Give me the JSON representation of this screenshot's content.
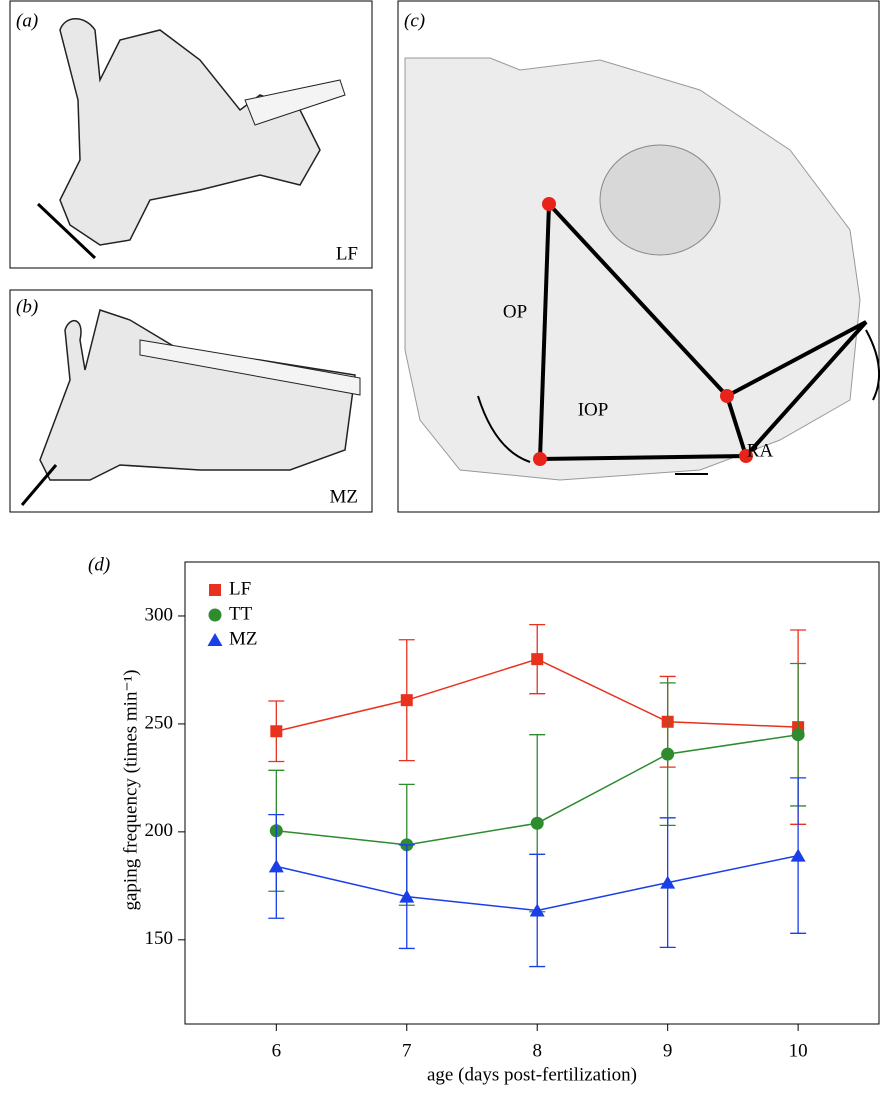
{
  "panels": [
    {
      "label": "(a)",
      "tag": "LF"
    },
    {
      "label": "(b)",
      "tag": "MZ"
    },
    {
      "label": "(c)",
      "annotations": [
        "OP",
        "IOP",
        "RA"
      ]
    }
  ],
  "chart_data": {
    "type": "line",
    "panel_label": "(d)",
    "x_label": "age (days post-fertilization)",
    "y_label": "gaping frequency (times min⁻¹)",
    "x": [
      6,
      7,
      8,
      9,
      10
    ],
    "xlim": [
      5.3,
      10.62
    ],
    "xticks": [
      6,
      7,
      8,
      9,
      10
    ],
    "ylim": [
      111,
      325
    ],
    "yticks": [
      150,
      200,
      250,
      300
    ],
    "legend": "upper left",
    "series": [
      {
        "name": "LF",
        "color": "#e8321e",
        "marker": "square",
        "values": [
          246.6,
          261,
          280,
          251,
          248.5
        ],
        "errors": [
          14,
          28,
          16,
          21,
          45
        ]
      },
      {
        "name": "TT",
        "color": "#2e8b2e",
        "marker": "circle",
        "values": [
          200.5,
          194,
          204,
          236,
          245
        ],
        "errors": [
          28,
          28,
          41,
          33,
          33
        ]
      },
      {
        "name": "MZ",
        "color": "#1a3ee8",
        "marker": "triangle",
        "values": [
          184,
          170,
          163.6,
          176.5,
          189
        ],
        "errors": [
          24,
          24,
          26,
          30,
          36
        ]
      }
    ]
  }
}
